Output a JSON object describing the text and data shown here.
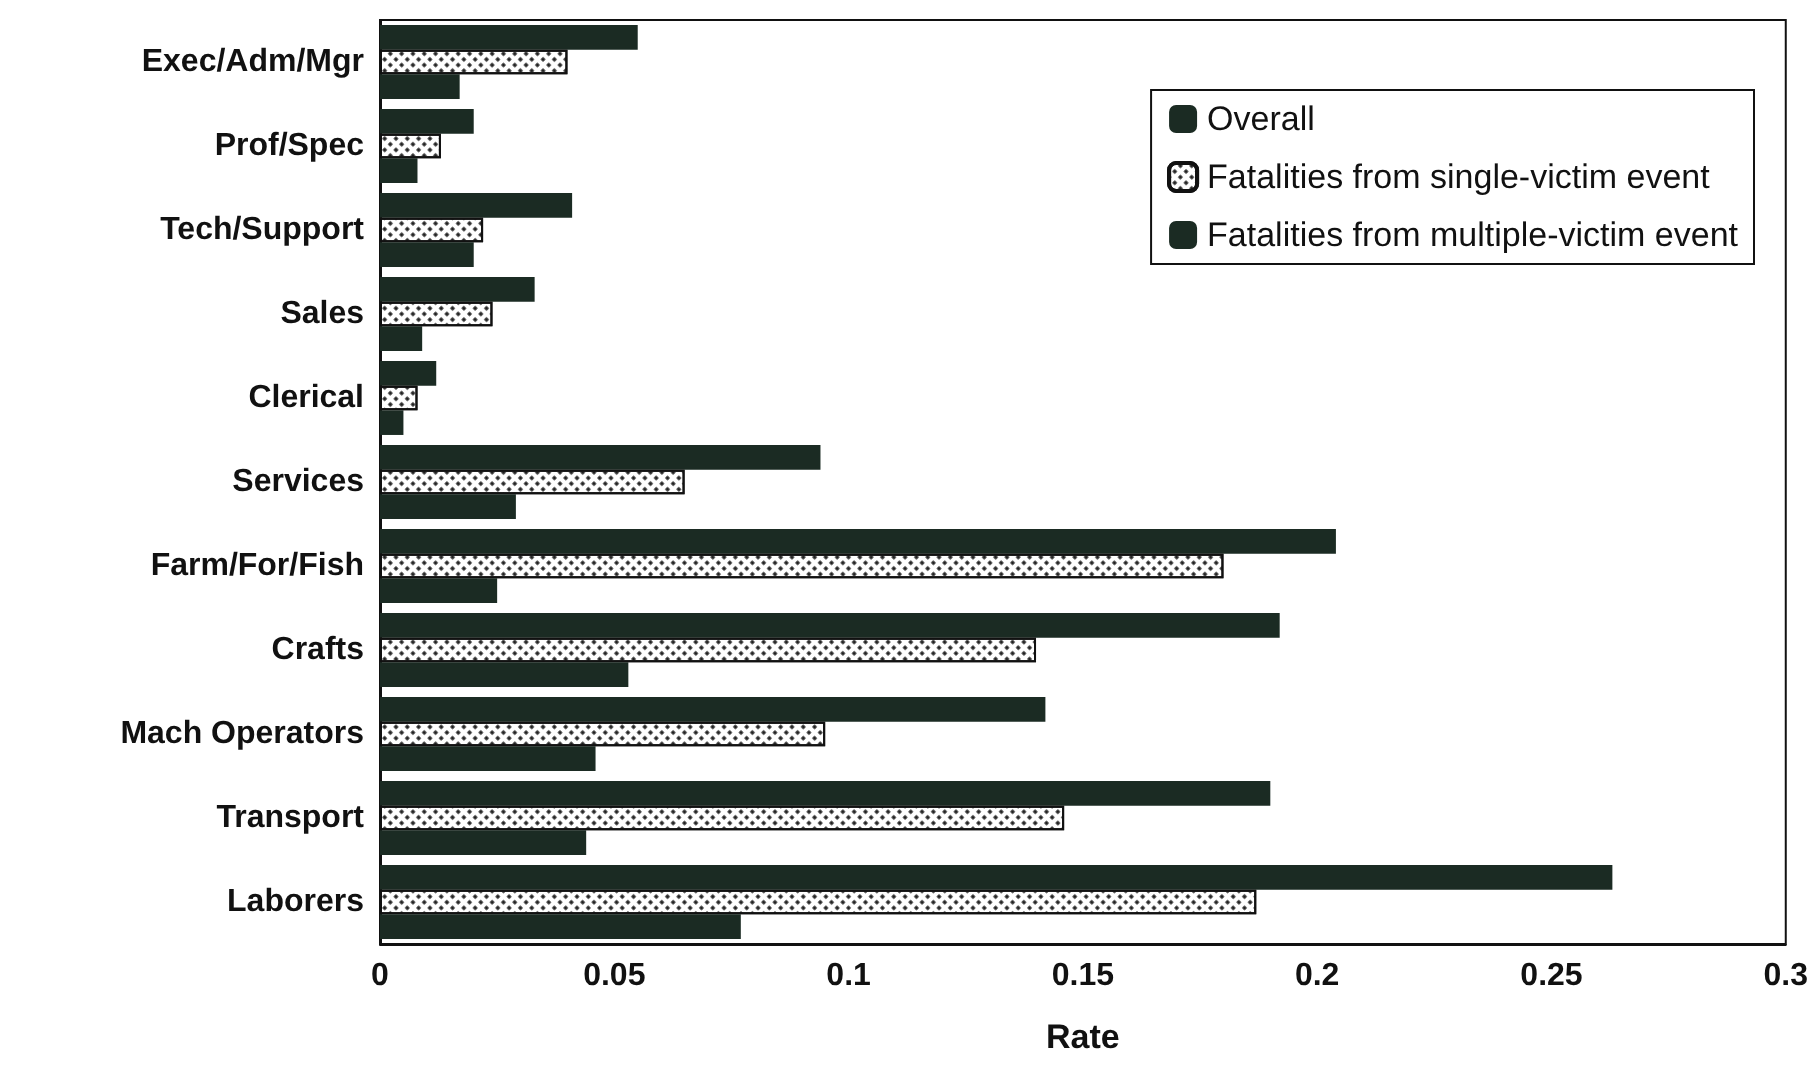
{
  "chart_data": {
    "type": "bar",
    "orientation": "horizontal",
    "xlabel": "Rate",
    "categories": [
      "Exec/Adm/Mgr",
      "Prof/Spec",
      "Tech/Support",
      "Sales",
      "Clerical",
      "Services",
      "Farm/For/Fish",
      "Crafts",
      "Mach Operators",
      "Transport",
      "Laborers"
    ],
    "series": [
      {
        "name": "Overall",
        "color": "#1b2b23",
        "values": [
          0.055,
          0.02,
          0.041,
          0.033,
          0.012,
          0.094,
          0.204,
          0.192,
          0.142,
          0.19,
          0.263
        ]
      },
      {
        "name": "Fatalities from single-victim event",
        "color": "#ffffff",
        "values": [
          0.04,
          0.013,
          0.022,
          0.024,
          0.008,
          0.065,
          0.18,
          0.14,
          0.095,
          0.146,
          0.187
        ]
      },
      {
        "name": "Fatalities from multiple-victim event",
        "color": "#1b2b23",
        "values": [
          0.017,
          0.008,
          0.02,
          0.009,
          0.005,
          0.029,
          0.025,
          0.053,
          0.046,
          0.044,
          0.077
        ]
      }
    ],
    "xlim": [
      0,
      0.3
    ],
    "xticks": [
      0,
      0.05,
      0.1,
      0.15,
      0.2,
      0.25,
      0.3
    ],
    "grid": false,
    "legend": "top right"
  }
}
